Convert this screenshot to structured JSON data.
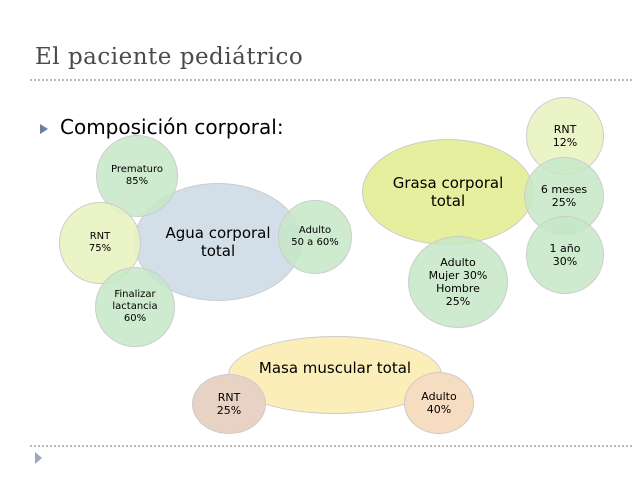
{
  "slide": {
    "title": "El paciente pediátrico",
    "bullet": "Composición corporal:"
  },
  "colors": {
    "agua": "#d3dfe8",
    "grasa": "#e6ef9e",
    "masa": "#fbeeb8",
    "small_green": "#c6e8c7",
    "small_lime": "#e7f2bf",
    "rnt_masa": "#e8d2c3",
    "adulto_masa": "#f6dcc0"
  },
  "agua": {
    "center": [
      "Agua corporal",
      "total"
    ],
    "prematuro": [
      "Prematuro",
      "85%"
    ],
    "rnt": [
      "RNT",
      "75%"
    ],
    "adulto": [
      "Adulto",
      "50 a 60%"
    ],
    "lactancia": [
      "Finalizar",
      "lactancia",
      "60%"
    ]
  },
  "grasa": {
    "center": [
      "Grasa corporal",
      "total"
    ],
    "rnt": [
      "RNT",
      "12%"
    ],
    "seis_meses": [
      "6 meses",
      "25%"
    ],
    "un_ano": [
      "1 año",
      "30%"
    ],
    "adulto": [
      "Adulto",
      "Mujer 30%",
      "Hombre",
      "25%"
    ]
  },
  "masa": {
    "center": "Masa muscular total",
    "rnt": [
      "RNT",
      "25%"
    ],
    "adulto": [
      "Adulto",
      "40%"
    ]
  }
}
